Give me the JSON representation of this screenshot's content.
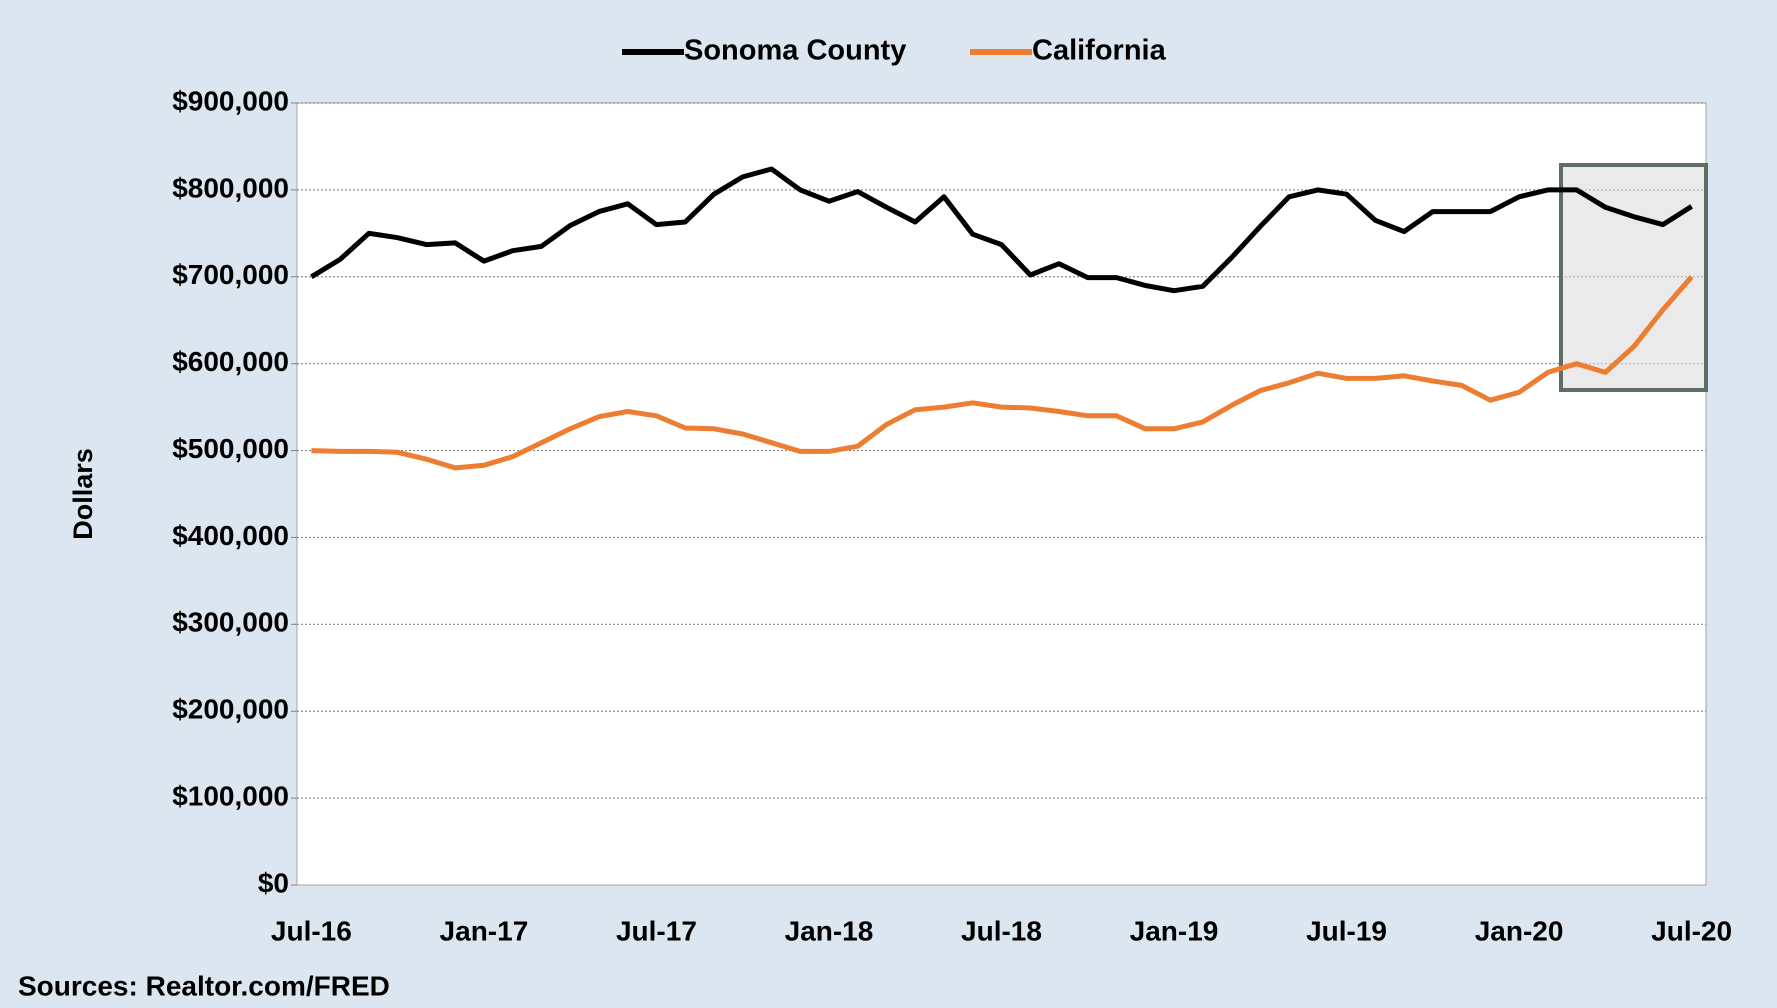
{
  "chart_data": {
    "type": "line",
    "categories": [
      "Jul-16",
      null,
      null,
      null,
      null,
      null,
      "Jan-17",
      null,
      null,
      null,
      null,
      null,
      "Jul-17",
      null,
      null,
      null,
      null,
      null,
      "Jan-18",
      null,
      null,
      null,
      null,
      null,
      "Jul-18",
      null,
      null,
      null,
      null,
      null,
      "Jan-19",
      null,
      null,
      null,
      null,
      null,
      "Jul-19",
      null,
      null,
      null,
      null,
      null,
      "Jan-20",
      null,
      null,
      null,
      null,
      null,
      "Jul-20"
    ],
    "series": [
      {
        "name": "Sonoma County",
        "color": "#000000",
        "values": [
          700000,
          720000,
          750000,
          745000,
          737000,
          739000,
          718000,
          730000,
          735000,
          759000,
          775000,
          784000,
          760000,
          763000,
          795000,
          815000,
          824000,
          800000,
          787000,
          798000,
          780000,
          763000,
          792000,
          749000,
          737000,
          702000,
          715000,
          699000,
          699000,
          690000,
          684000,
          689000,
          722000,
          758000,
          792000,
          800000,
          795000,
          765000,
          752000,
          775000,
          775000,
          775000,
          792000,
          800000,
          800000,
          780000,
          769000,
          760000,
          781000
        ]
      },
      {
        "name": "California",
        "color": "#ed7d31",
        "values": [
          500000,
          499000,
          499000,
          498000,
          490000,
          480000,
          483000,
          493000,
          509000,
          525000,
          539000,
          545000,
          540000,
          526000,
          525000,
          519000,
          509000,
          499000,
          499000,
          505000,
          530000,
          547000,
          550000,
          555000,
          550000,
          549000,
          545000,
          540000,
          540000,
          525000,
          525000,
          533000,
          552000,
          569000,
          578000,
          589000,
          583000,
          583000,
          586000,
          580000,
          575000,
          558000,
          567000,
          590000,
          600000,
          590000,
          620000,
          662000,
          700000
        ]
      }
    ],
    "y_label": "Dollars",
    "ylim": [
      0,
      900000
    ],
    "yticks": [
      {
        "value": 0,
        "label": "$0"
      },
      {
        "value": 100000,
        "label": "$100,000"
      },
      {
        "value": 200000,
        "label": "$200,000"
      },
      {
        "value": 300000,
        "label": "$300,000"
      },
      {
        "value": 400000,
        "label": "$400,000"
      },
      {
        "value": 500000,
        "label": "$500,000"
      },
      {
        "value": 600000,
        "label": "$600,000"
      },
      {
        "value": 700000,
        "label": "$700,000"
      },
      {
        "value": 800000,
        "label": "$800,000"
      },
      {
        "value": 900000,
        "label": "$900,000"
      }
    ],
    "grid": true,
    "legend": "top",
    "source": "Sources: Realtor.com/FRED"
  }
}
